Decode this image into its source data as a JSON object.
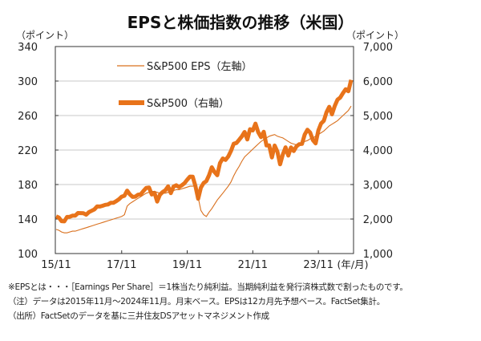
{
  "chart_data": {
    "type": "line",
    "title": "EPSと株価指数の推移（米国）",
    "left_axis": {
      "unit_label": "（ポイント）",
      "range": [
        100,
        340
      ],
      "ticks": [
        "100",
        "140",
        "180",
        "220",
        "260",
        "300",
        "340"
      ]
    },
    "right_axis": {
      "unit_label": "（ポイント）",
      "range": [
        1000,
        7000
      ],
      "ticks": [
        "1,000",
        "2,000",
        "3,000",
        "4,000",
        "5,000",
        "6,000",
        "7,000"
      ]
    },
    "x_start": "2015-11",
    "x_ticks": [
      {
        "label": "15/11",
        "index": 0
      },
      {
        "label": "17/11",
        "index": 24
      },
      {
        "label": "19/11",
        "index": 48
      },
      {
        "label": "21/11",
        "index": 72
      },
      {
        "label": "23/11",
        "index": 96
      }
    ],
    "x_unit_label": "(年/月)",
    "grid": "horizontal",
    "legend_placement": "top-left",
    "series": [
      {
        "name": "S&P500 EPS（左軸）",
        "axis": "left",
        "color": "#D9701E",
        "values": [
          128,
          127,
          125,
          124,
          124,
          125,
          126,
          126,
          127,
          128,
          129,
          130,
          131,
          132,
          133,
          134,
          135,
          136,
          137,
          138,
          139,
          140,
          141,
          142,
          143,
          145,
          155,
          158,
          160,
          162,
          164,
          166,
          168,
          170,
          171,
          172,
          172,
          171,
          170,
          170,
          170,
          171,
          172,
          173,
          174,
          174,
          175,
          176,
          177,
          178,
          178,
          179,
          165,
          150,
          145,
          143,
          148,
          152,
          157,
          162,
          166,
          170,
          174,
          178,
          183,
          190,
          196,
          201,
          207,
          212,
          215,
          218,
          221,
          224,
          227,
          230,
          232,
          234,
          236,
          237,
          238,
          236,
          235,
          234,
          232,
          230,
          228,
          227,
          226,
          227,
          228,
          230,
          231,
          233,
          234,
          236,
          238,
          240,
          242,
          245,
          248,
          250,
          252,
          254,
          257,
          260,
          263,
          266,
          271
        ]
      },
      {
        "name": "S&P500（右軸）",
        "axis": "right",
        "color": "#E8731A",
        "values": [
          2080,
          2044,
          1940,
          1932,
          2060,
          2065,
          2097,
          2099,
          2174,
          2171,
          2168,
          2126,
          2199,
          2239,
          2279,
          2364,
          2363,
          2384,
          2412,
          2423,
          2470,
          2472,
          2519,
          2575,
          2648,
          2674,
          2824,
          2714,
          2641,
          2648,
          2705,
          2718,
          2816,
          2902,
          2914,
          2712,
          2760,
          2507,
          2704,
          2784,
          2834,
          2946,
          2752,
          2942,
          2980,
          2926,
          2977,
          3038,
          3141,
          3231,
          3226,
          2954,
          2585,
          2912,
          3044,
          3100,
          3271,
          3500,
          3363,
          3270,
          3622,
          3756,
          3714,
          3811,
          3973,
          4181,
          4204,
          4298,
          4395,
          4523,
          4308,
          4605,
          4567,
          4766,
          4516,
          4374,
          4530,
          4132,
          4132,
          3785,
          4130,
          3955,
          3586,
          3872,
          4080,
          3840,
          4077,
          3970,
          4109,
          4169,
          4180,
          4450,
          4589,
          4508,
          4288,
          4194,
          4568,
          4770,
          4846,
          5096,
          5254,
          5036,
          5278,
          5460,
          5522,
          5648,
          5762,
          5705,
          6032
        ]
      }
    ]
  },
  "footnotes": [
    "※EPSとは・・・［Earnings Per Share］＝1株当たり純利益。当期純利益を発行済株式数で割ったものです。",
    "（注）データは2015年11月～2024年11月。月末ベース。EPSは12カ月先予想ベース。FactSet集計。",
    "（出所）FactSetのデータを基に三井住友DSアセットマネジメント作成"
  ]
}
